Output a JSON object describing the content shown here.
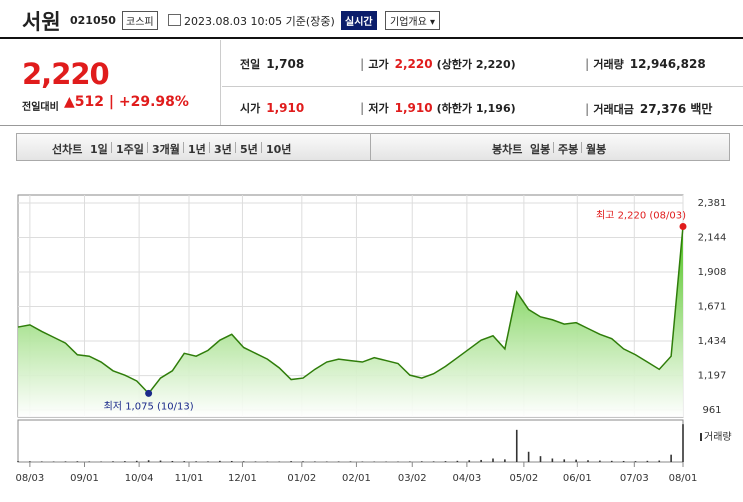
{
  "header": {
    "name": "서원",
    "code": "021050",
    "market": "코스피",
    "timestamp": "2023.08.03 10:05 기준(장중)",
    "realtime": "실시간",
    "company_menu": "기업개요"
  },
  "price": {
    "current": "2,220",
    "change_label": "전일대비",
    "change": "512",
    "change_rate": "+29.98%"
  },
  "quote": {
    "rows": [
      [
        {
          "label": "전일",
          "value": "1,708"
        },
        {
          "label": "고가",
          "value": "2,220",
          "extra": "(상한가 2,220)"
        },
        {
          "label": "거래량",
          "value": "12,946,828"
        }
      ],
      [
        {
          "label": "시가",
          "value": "1,910"
        },
        {
          "label": "저가",
          "value": "1,910",
          "extra": "(하한가 1,196)"
        },
        {
          "label": "거래대금",
          "value": "27,376 백만"
        }
      ]
    ]
  },
  "tabs": {
    "line": [
      "선차트",
      "1일",
      "1주일",
      "3개월",
      "1년",
      "3년",
      "5년",
      "10년"
    ],
    "candle": [
      "봉차트",
      "일봉",
      "주봉",
      "월봉"
    ]
  },
  "chart_data": [
    {
      "type": "area",
      "color": "#2f7d0a",
      "x": [
        0,
        1,
        2,
        3,
        4,
        5,
        6,
        7,
        8,
        9,
        10,
        11,
        12,
        13,
        14,
        15,
        16,
        17,
        18,
        19,
        20,
        21,
        22,
        23,
        24,
        25,
        26,
        27,
        28,
        29,
        30,
        31,
        32,
        33,
        34,
        35,
        36,
        37,
        38,
        39,
        40,
        41,
        42,
        43,
        44,
        45,
        46,
        47,
        48,
        49,
        50,
        51,
        52,
        53,
        54,
        55,
        56
      ],
      "series": [
        {
          "values": [
            1530,
            1545,
            1500,
            1460,
            1420,
            1340,
            1330,
            1290,
            1230,
            1200,
            1160,
            1075,
            1180,
            1230,
            1350,
            1330,
            1370,
            1440,
            1480,
            1390,
            1350,
            1310,
            1250,
            1170,
            1180,
            1240,
            1290,
            1310,
            1300,
            1290,
            1320,
            1300,
            1280,
            1200,
            1180,
            1210,
            1260,
            1320,
            1380,
            1440,
            1470,
            1380,
            1770,
            1650,
            1600,
            1580,
            1550,
            1560,
            1520,
            1480,
            1450,
            1380,
            1340,
            1290,
            1240,
            1330,
            2220
          ]
        }
      ],
      "xlim": [
        0,
        56
      ],
      "xticks": [
        {
          "value": 1,
          "label": "08/03"
        },
        {
          "value": 5.6,
          "label": "09/01"
        },
        {
          "value": 10.2,
          "label": "10/04"
        },
        {
          "value": 14.4,
          "label": "11/01"
        },
        {
          "value": 18.9,
          "label": "12/01"
        },
        {
          "value": 23.9,
          "label": "01/02"
        },
        {
          "value": 28.5,
          "label": "02/01"
        },
        {
          "value": 33.2,
          "label": "03/02"
        },
        {
          "value": 37.8,
          "label": "04/03"
        },
        {
          "value": 42.6,
          "label": "05/02"
        },
        {
          "value": 47.1,
          "label": "06/01"
        },
        {
          "value": 51.9,
          "label": "07/03"
        },
        {
          "value": 56,
          "label": "08/01"
        }
      ],
      "ylim": [
        961,
        2381
      ],
      "yticks": [
        961,
        {
          "value": 1197,
          "label": "1,197"
        },
        {
          "value": 1434,
          "label": "1,434"
        },
        {
          "value": 1671,
          "label": "1,671"
        },
        {
          "value": 1908,
          "label": "1,908"
        },
        {
          "value": 2144,
          "label": "2,144"
        },
        {
          "value": 2381,
          "label": "2,381"
        }
      ],
      "grid": true,
      "annotations": [
        {
          "text": "최고 2,220 (08/03)",
          "index": 56,
          "color": "#e01c1c"
        },
        {
          "text": "최저 1,075 (10/13)",
          "index": 11,
          "color": "#1a2a8a"
        }
      ]
    },
    {
      "type": "bar",
      "title": "거래량",
      "color": "#333333",
      "values": [
        300000,
        250000,
        200000,
        180000,
        220000,
        260000,
        200000,
        180000,
        250000,
        300000,
        400000,
        600000,
        500000,
        350000,
        300000,
        250000,
        220000,
        400000,
        350000,
        250000,
        200000,
        180000,
        170000,
        300000,
        250000,
        200000,
        180000,
        200000,
        220000,
        180000,
        170000,
        160000,
        170000,
        200000,
        250000,
        220000,
        300000,
        400000,
        600000,
        700000,
        1200000,
        900000,
        11000000,
        3500000,
        2000000,
        1200000,
        900000,
        800000,
        600000,
        500000,
        400000,
        350000,
        300000,
        400000,
        500000,
        2500000,
        12946828
      ],
      "ylim": [
        0,
        13000000
      ]
    }
  ]
}
